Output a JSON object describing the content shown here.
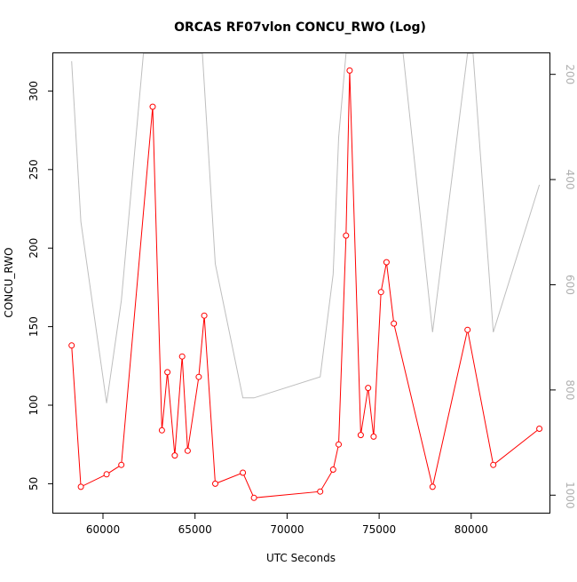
{
  "chart_data": {
    "type": "line",
    "title": "ORCAS RF07vlon CONCU_RWO (Log)",
    "xlabel": "UTC Seconds",
    "ylabel": "CONCU_RWO",
    "xlim": [
      57300,
      84300
    ],
    "ylim": [
      31,
      324
    ],
    "y2lim": [
      1035,
      160
    ],
    "y2_reversed": true,
    "xticks": [
      60000,
      65000,
      70000,
      75000,
      80000
    ],
    "yticks": [
      50,
      100,
      150,
      200,
      250,
      300
    ],
    "y2ticks": [
      200,
      400,
      600,
      800,
      1000
    ],
    "grid": false,
    "series": [
      {
        "axis": "left",
        "color": "#ff0000",
        "marker": "open-circle",
        "x": [
          58300,
          58800,
          60200,
          61000,
          62700,
          63200,
          63500,
          63900,
          64300,
          64600,
          65200,
          65500,
          66100,
          67600,
          68200,
          71800,
          72500,
          72800,
          73200,
          73400,
          74000,
          74400,
          74700,
          75100,
          75400,
          75800,
          77900,
          79800,
          81200,
          83700
        ],
        "y": [
          138,
          48,
          56,
          62,
          290,
          84,
          121,
          68,
          131,
          71,
          118,
          157,
          50,
          57,
          41,
          45,
          59,
          75,
          208,
          313,
          81,
          111,
          80,
          172,
          191,
          152,
          48,
          148,
          62,
          85
        ]
      },
      {
        "axis": "right",
        "color": "#bebebe",
        "marker": "none",
        "x": [
          58300,
          58800,
          60200,
          61000,
          62200,
          63000,
          64900,
          65400,
          66100,
          67600,
          68200,
          71800,
          72500,
          72800,
          73200,
          73400,
          74000,
          74400,
          74700,
          75100,
          75400,
          75800,
          76300,
          77900,
          79800,
          80100,
          81200,
          83700
        ],
        "y": [
          175,
          480,
          825,
          630,
          160,
          160,
          160,
          160,
          560,
          815,
          815,
          775,
          580,
          320,
          160,
          160,
          160,
          160,
          160,
          160,
          160,
          160,
          160,
          690,
          160,
          160,
          690,
          410
        ]
      }
    ]
  }
}
